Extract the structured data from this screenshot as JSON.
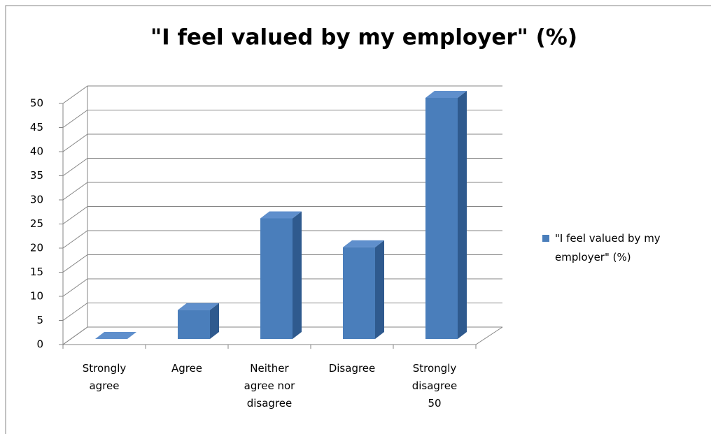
{
  "chart_data": {
    "type": "bar3d",
    "title": "\"I feel valued by my employer\" (%)",
    "categories": [
      "Strongly agree",
      "Agree",
      "Neither agree nor disagree",
      "Disagree",
      "Strongly disagree 50"
    ],
    "series": [
      {
        "name": "\"I feel valued by my employer\" (%)",
        "color": "#4a7ebb",
        "values": [
          0,
          6,
          25,
          19,
          50
        ]
      }
    ],
    "ylim": [
      0,
      50
    ],
    "yticks": [
      0,
      5,
      10,
      15,
      20,
      25,
      30,
      35,
      40,
      45,
      50
    ],
    "grid": true,
    "legend": "right"
  }
}
